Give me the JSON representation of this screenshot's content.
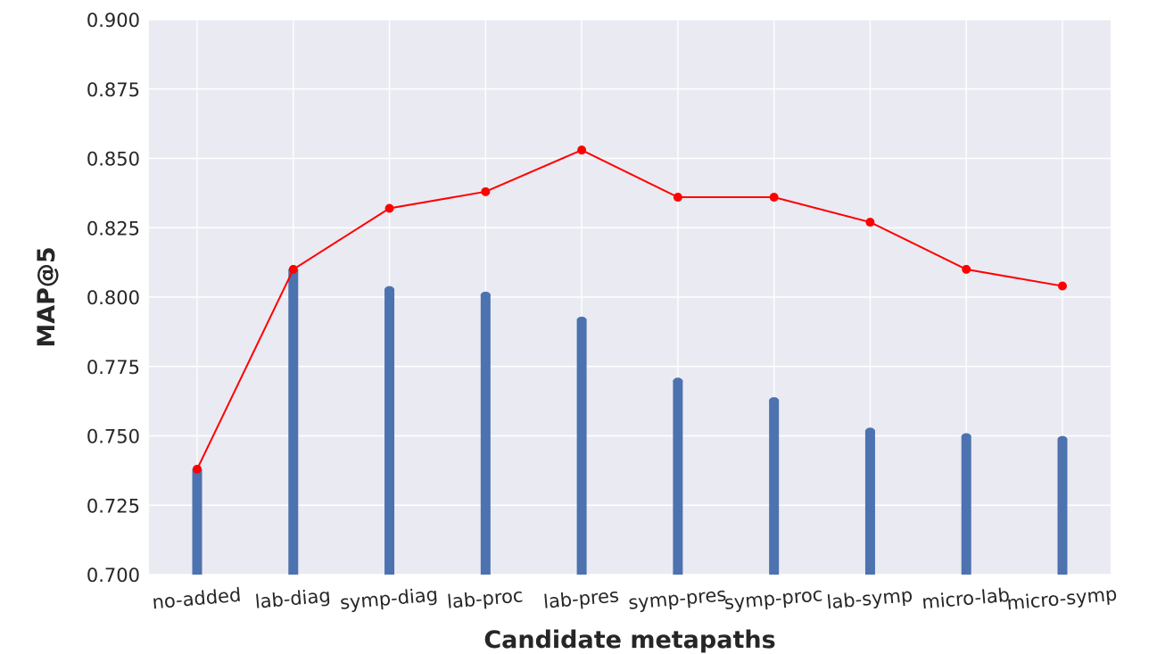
{
  "chart_data": {
    "type": "bar",
    "xlabel": "Candidate metapaths",
    "ylabel": "MAP@5",
    "ylim": [
      0.7,
      0.9
    ],
    "yticks": [
      "0.700",
      "0.725",
      "0.750",
      "0.775",
      "0.800",
      "0.825",
      "0.850",
      "0.875",
      "0.900"
    ],
    "categories": [
      "no-added",
      "lab-diag",
      "symp-diag",
      "lab-proc",
      "lab-pres",
      "symp-pres",
      "symp-proc",
      "lab-symp",
      "micro-lab",
      "micro-symp"
    ],
    "series": [
      {
        "kind": "bar",
        "color": "#4c72b0",
        "values": [
          0.738,
          0.81,
          0.803,
          0.801,
          0.792,
          0.77,
          0.763,
          0.752,
          0.75,
          0.749
        ]
      },
      {
        "kind": "line",
        "color": "#ff0000",
        "values": [
          0.738,
          0.81,
          0.832,
          0.838,
          0.853,
          0.836,
          0.836,
          0.827,
          0.81,
          0.804
        ]
      }
    ],
    "grid": true,
    "background": "#eaeaf2"
  }
}
